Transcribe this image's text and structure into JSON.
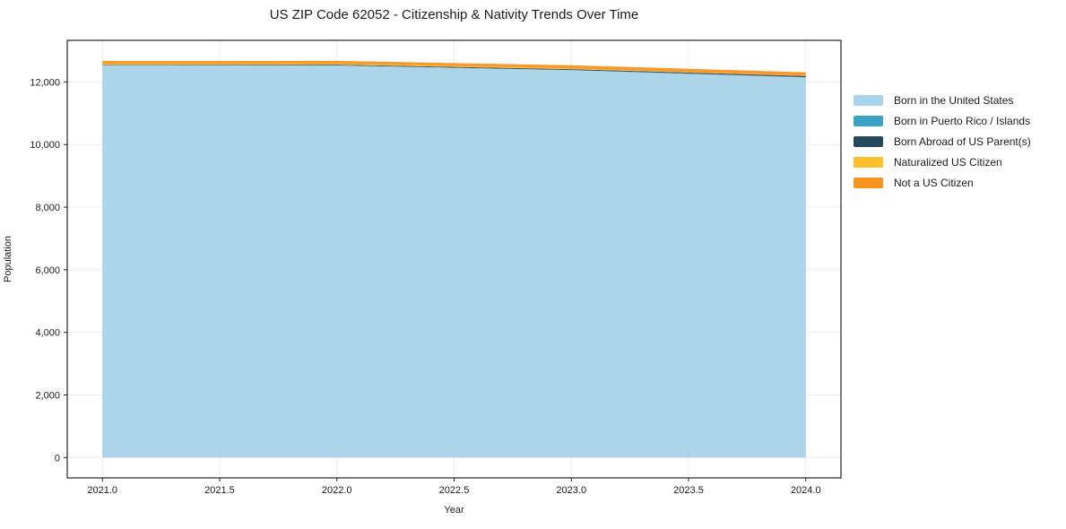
{
  "chart_data": {
    "type": "area",
    "stacked": true,
    "title": "US ZIP Code 62052 - Citizenship & Nativity Trends Over Time",
    "xlabel": "Year",
    "ylabel": "Population",
    "x": [
      2021,
      2022,
      2023,
      2024
    ],
    "series": [
      {
        "name": "Born in the United States",
        "color": "#a8d3e8",
        "values": [
          12530,
          12530,
          12380,
          12150
        ]
      },
      {
        "name": "Born in Puerto Rico / Islands",
        "color": "#3aa3c5",
        "values": [
          0,
          0,
          0,
          0
        ]
      },
      {
        "name": "Born Abroad of US Parent(s)",
        "color": "#25485c",
        "values": [
          20,
          25,
          30,
          40
        ]
      },
      {
        "name": "Naturalized US Citizen",
        "color": "#fcc02a",
        "values": [
          35,
          30,
          20,
          10
        ]
      },
      {
        "name": "Not a US Citizen",
        "color": "#f79420",
        "values": [
          85,
          90,
          105,
          110
        ]
      }
    ],
    "x_ticks": {
      "values": [
        2021,
        2021.5,
        2022,
        2022.5,
        2023,
        2023.5,
        2024
      ],
      "labels": [
        "2021.0",
        "2021.5",
        "2022.0",
        "2022.5",
        "2023.0",
        "2023.5",
        "2024.0"
      ]
    },
    "y_ticks": {
      "values": [
        0,
        2000,
        4000,
        6000,
        8000,
        10000,
        12000
      ],
      "labels": [
        "0",
        "2,000",
        "4,000",
        "6,000",
        "8,000",
        "10,000",
        "12,000"
      ]
    },
    "xlim": [
      2020.85,
      2024.15
    ],
    "ylim": [
      -650,
      13330
    ],
    "grid": true,
    "legend_position": "right-outside",
    "colors": {
      "grid": "#ececec",
      "spine": "#222222",
      "background": "#ffffff"
    }
  }
}
